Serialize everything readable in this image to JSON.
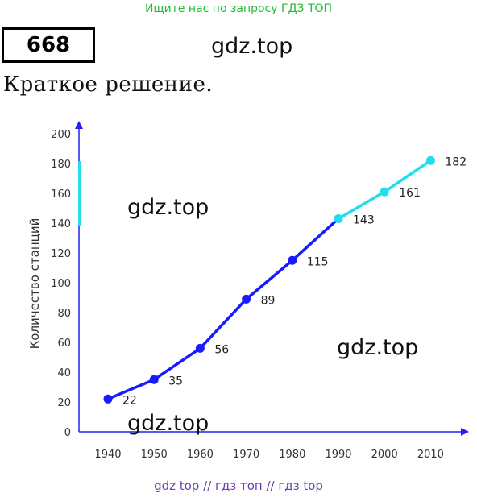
{
  "header": {
    "banner": "Ищите нас по запросу ГДЗ ТОП",
    "problem_number": "668",
    "subtitle": "Краткое решение."
  },
  "watermarks": [
    "gdz.top",
    "gdz.top",
    "gdz.top",
    "gdz.top"
  ],
  "footer": {
    "links": "gdz top  //  гдз топ  //  гдз top"
  },
  "colors": {
    "line_main": "#1a1aff",
    "line_highlight": "#22ddee",
    "axis": "#2222ee",
    "banner": "#22bb33"
  },
  "chart_data": {
    "type": "line",
    "title": "",
    "xlabel": "",
    "ylabel": "Количество станций",
    "x": [
      1940,
      1950,
      1960,
      1970,
      1980,
      1990,
      2000,
      2010
    ],
    "values": [
      22,
      35,
      56,
      89,
      115,
      143,
      161,
      182
    ],
    "x_tick_labels": [
      "1940",
      "1950",
      "1960",
      "1970",
      "1980",
      "1990",
      "2000",
      "2010"
    ],
    "y_ticks": [
      0,
      20,
      40,
      60,
      80,
      100,
      120,
      140,
      160,
      180,
      200
    ],
    "y_tick_labels": [
      "0",
      "20",
      "40",
      "60",
      "80",
      "100",
      "120",
      "140",
      "160",
      "180",
      "200"
    ],
    "data_labels": [
      "22",
      "35",
      "56",
      "89",
      "115",
      "143",
      "161",
      "182"
    ],
    "ylim": [
      0,
      200
    ],
    "highlight_from_x": 1990,
    "grid": false,
    "legend": "none"
  }
}
